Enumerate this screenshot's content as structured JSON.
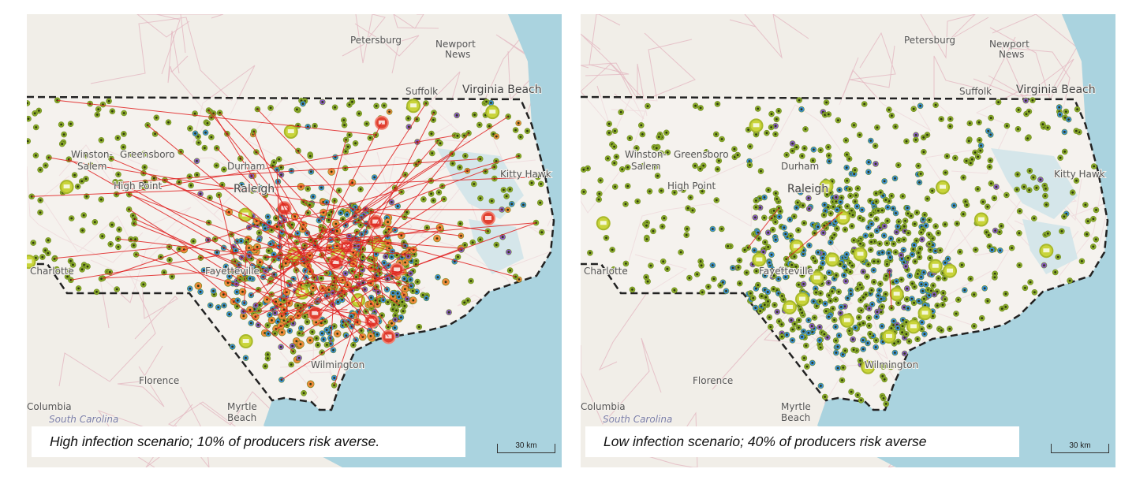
{
  "map": {
    "place_labels": [
      {
        "id": "petersburg",
        "text": "Petersburg"
      },
      {
        "id": "newport",
        "text": "Newport"
      },
      {
        "id": "news",
        "text": "News"
      },
      {
        "id": "suffolk",
        "text": "Suffolk"
      },
      {
        "id": "virginia-beach",
        "text": "Virginia Beach"
      },
      {
        "id": "kitty-hawk",
        "text": "Kitty Hawk"
      },
      {
        "id": "winston",
        "text": "Winston-"
      },
      {
        "id": "salem",
        "text": "Salem"
      },
      {
        "id": "greensboro",
        "text": "Greensboro"
      },
      {
        "id": "high-point",
        "text": "High Point"
      },
      {
        "id": "durham",
        "text": "Durham"
      },
      {
        "id": "raleigh",
        "text": "Raleigh"
      },
      {
        "id": "charlotte",
        "text": "Charlotte"
      },
      {
        "id": "fayetteville",
        "text": "Fayetteville"
      },
      {
        "id": "wilmington",
        "text": "Wilmington"
      },
      {
        "id": "florence",
        "text": "Florence"
      },
      {
        "id": "columbia",
        "text": "Columbia"
      },
      {
        "id": "south-carolina",
        "text": "South Carolina"
      },
      {
        "id": "myrtle",
        "text": "Myrtle"
      },
      {
        "id": "beach",
        "text": "Beach"
      }
    ],
    "colors": {
      "land": "#f1eee8",
      "water": "#aad3df",
      "state_interior": "#f8f6f2",
      "boundary": "#222222",
      "roads": "#e3b6c1",
      "farm": "#8aaa2a",
      "farm_center": "#2f3a10",
      "blue_marker": "#3a8fd8",
      "purple_marker": "#8a5bc8",
      "orange_marker": "#ee8a3a",
      "infected": "#e04030",
      "transmission_line": "#e02020"
    },
    "marker_legend_icons": [
      "farm-marker",
      "producer-marker-P",
      "infected-farm-icon",
      "truck-icon"
    ]
  },
  "panels": [
    {
      "id": "left",
      "caption": "High infection scenario; 10% of producers risk averse.",
      "scale_label": "30 km"
    },
    {
      "id": "right",
      "caption": "Low infection scenario; 40% of producers risk averse",
      "scale_label": "30 km"
    }
  ]
}
